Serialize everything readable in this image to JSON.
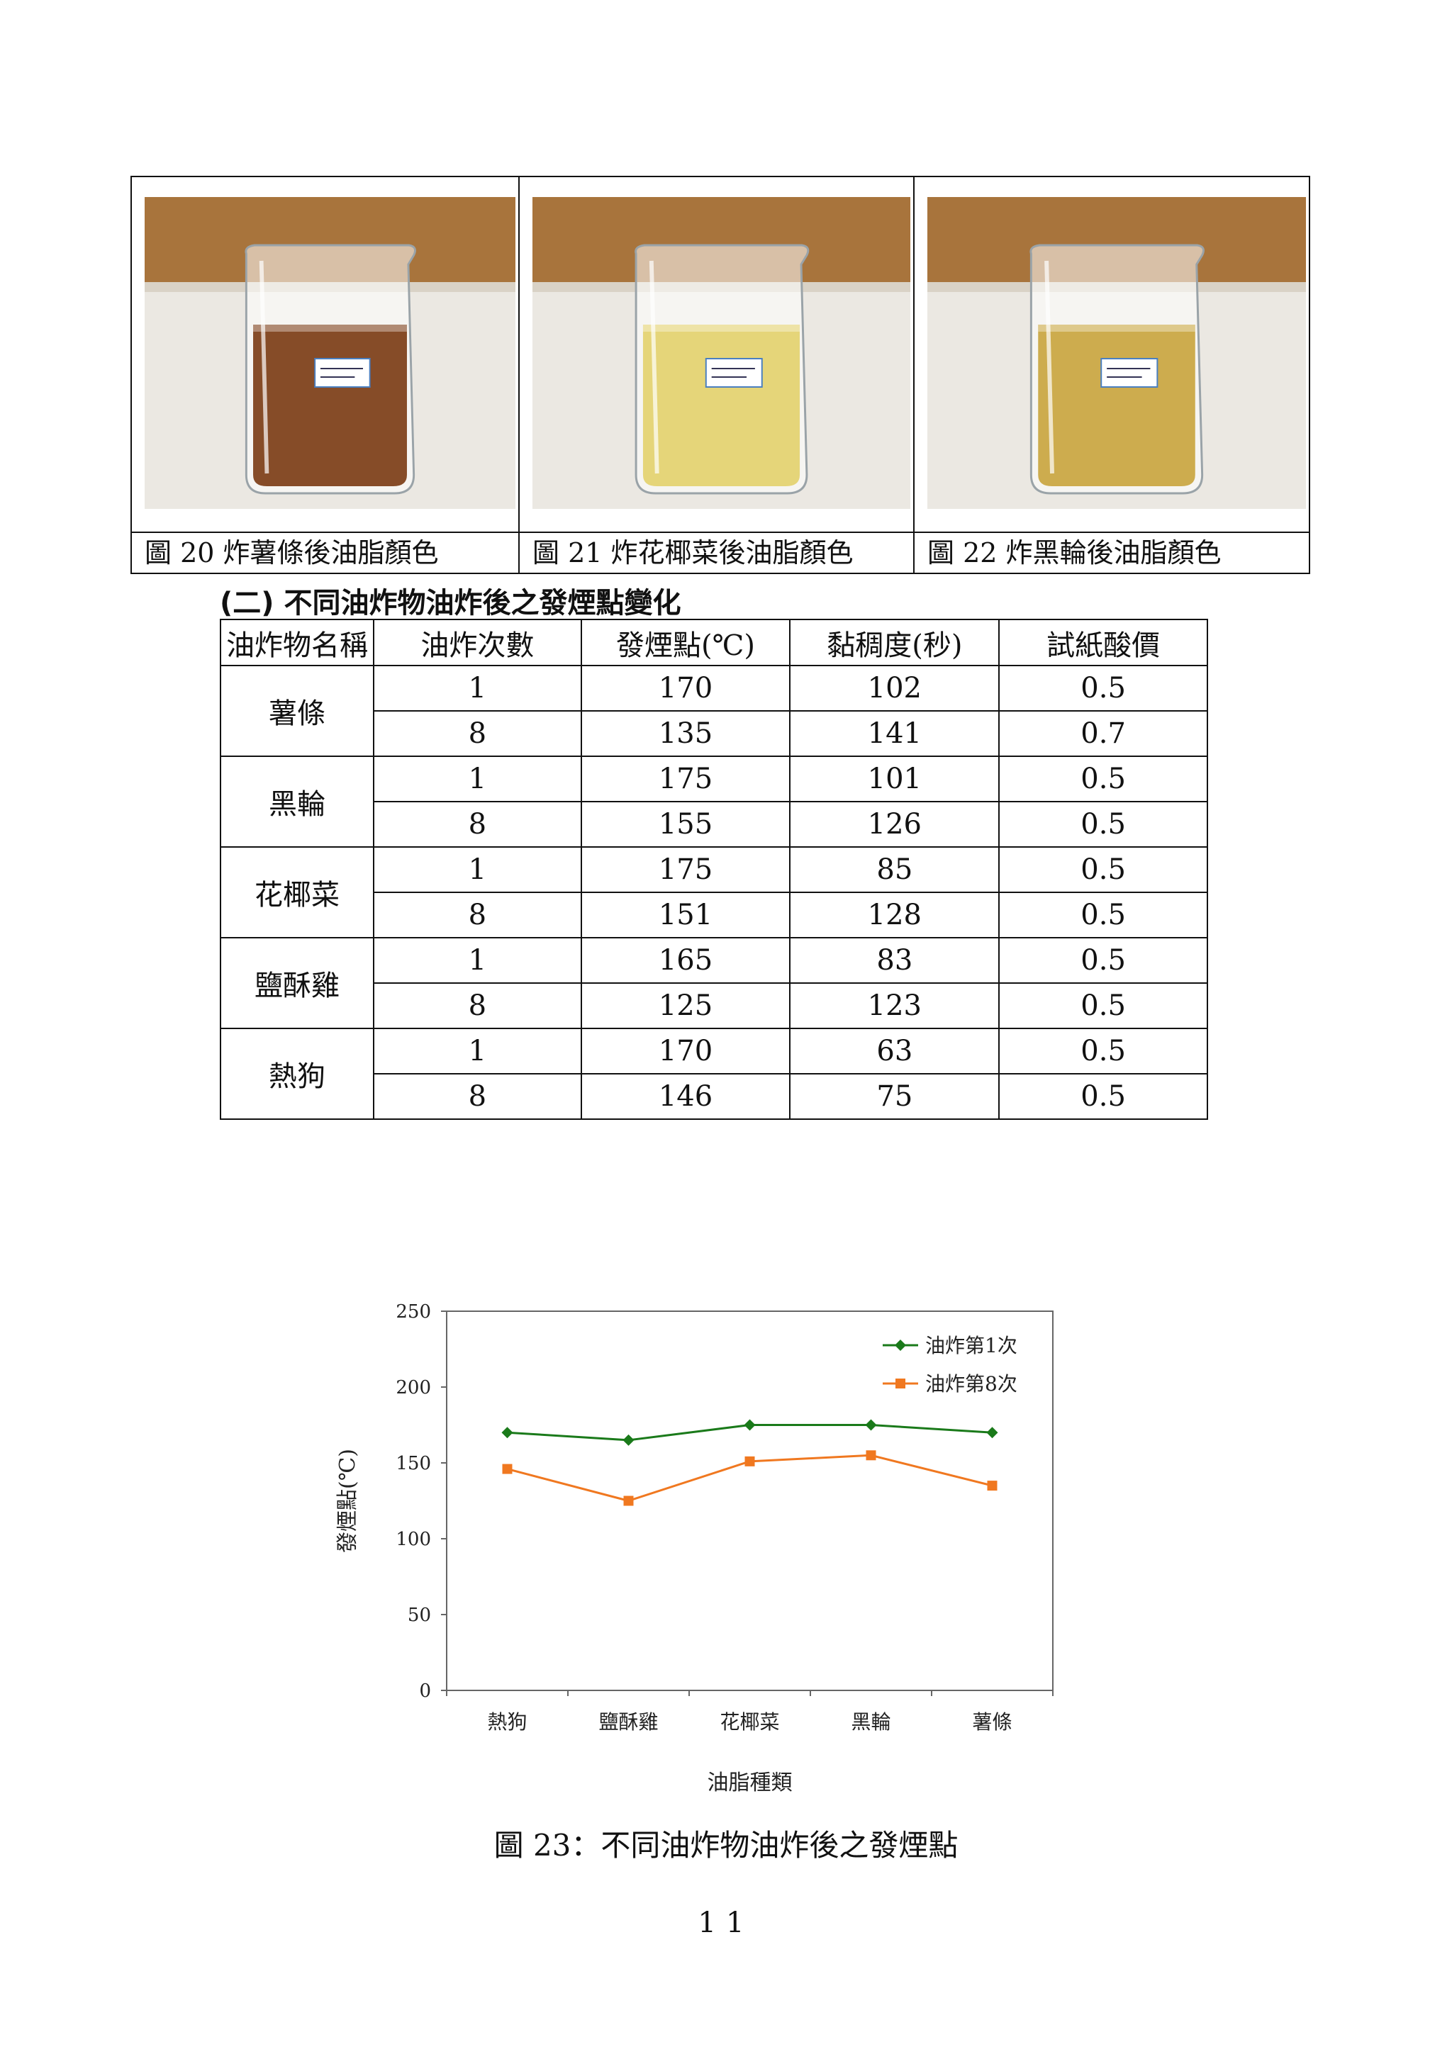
{
  "photos": [
    {
      "caption": "圖 20 炸薯條後油脂顏色",
      "liquid_color": "#7a3a12",
      "label": "薯條"
    },
    {
      "caption": "圖 21 炸花椰菜後油脂顏色",
      "liquid_color": "#e3d16c",
      "label": "花椰菜"
    },
    {
      "caption": "圖 22 炸黑輪後油脂顏色",
      "liquid_color": "#c9a43c",
      "label": "黑輪"
    }
  ],
  "section_title": "(二) 不同油炸物油炸後之發煙點變化",
  "table": {
    "headers": [
      "油炸物名稱",
      "油炸次數",
      "發煙點(℃)",
      "黏稠度(秒)",
      "試紙酸價"
    ],
    "groups": [
      {
        "name": "薯條",
        "rows": [
          [
            "1",
            "170",
            "102",
            "0.5"
          ],
          [
            "8",
            "135",
            "141",
            "0.7"
          ]
        ]
      },
      {
        "name": "黑輪",
        "rows": [
          [
            "1",
            "175",
            "101",
            "0.5"
          ],
          [
            "8",
            "155",
            "126",
            "0.5"
          ]
        ]
      },
      {
        "name": "花椰菜",
        "rows": [
          [
            "1",
            "175",
            "85",
            "0.5"
          ],
          [
            "8",
            "151",
            "128",
            "0.5"
          ]
        ]
      },
      {
        "name": "鹽酥雞",
        "rows": [
          [
            "1",
            "165",
            "83",
            "0.5"
          ],
          [
            "8",
            "125",
            "123",
            "0.5"
          ]
        ]
      },
      {
        "name": "熱狗",
        "rows": [
          [
            "1",
            "170",
            "63",
            "0.5"
          ],
          [
            "8",
            "146",
            "75",
            "0.5"
          ]
        ]
      }
    ]
  },
  "chart_data": {
    "type": "line",
    "categories": [
      "熱狗",
      "鹽酥雞",
      "花椰菜",
      "黑輪",
      "薯條"
    ],
    "series": [
      {
        "name": "油炸第1次",
        "values": [
          170,
          165,
          175,
          175,
          170
        ],
        "color": "#1a7a1a",
        "marker": "diamond"
      },
      {
        "name": "油炸第8次",
        "values": [
          146,
          125,
          151,
          155,
          135
        ],
        "color": "#f07820",
        "marker": "square"
      }
    ],
    "xlabel": "油脂種類",
    "ylabel": "發煙點(℃)",
    "ylim": [
      0,
      250
    ],
    "yticks": [
      "0",
      "50",
      "100",
      "150",
      "200",
      "250"
    ],
    "legend_position": "top-right",
    "grid": false
  },
  "figure_caption": "圖 23：不同油炸物油炸後之發煙點",
  "page_number": "11"
}
